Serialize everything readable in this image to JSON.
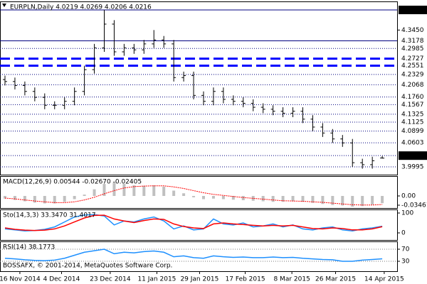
{
  "chart_data": [
    {
      "type": "ohlc",
      "title": "EURPLN,Daily  4.0219 4.0269 4.0206 4.0216",
      "color": "#000000",
      "ylim": [
        3.9798,
        4.4173
      ],
      "yticks": [
        {
          "value": 4.345,
          "label": "4.3450"
        }
      ],
      "levels": [
        {
          "value": 4.3958,
          "style": "solid",
          "highlight": true
        },
        {
          "value": 4.3178,
          "style": "solid"
        },
        {
          "value": 4.2985,
          "style": "dotted"
        },
        {
          "value": 4.2727,
          "style": "dashed"
        },
        {
          "value": 4.2551,
          "style": "dashed"
        },
        {
          "value": 4.2329,
          "style": "dotted"
        },
        {
          "value": 4.2068,
          "style": "dotted"
        },
        {
          "value": 4.176,
          "label": "4.1760",
          "style": "dotted"
        },
        {
          "value": 4.1567,
          "style": "dotted"
        },
        {
          "value": 4.1325,
          "style": "dotted"
        },
        {
          "value": 4.1125,
          "style": "dotted"
        },
        {
          "value": 4.0899,
          "style": "dotted"
        },
        {
          "value": 4.0603,
          "style": "dotted"
        },
        {
          "value": 4.0279,
          "style": "dotted",
          "highlight": true
        },
        {
          "value": 3.9995,
          "style": "dotted"
        }
      ],
      "xticks": [
        {
          "value": 1.5,
          "label": "16 Nov 2014"
        },
        {
          "value": 5.7,
          "label": "4 Dec 2014"
        },
        {
          "value": 10.6,
          "label": "23 Dec 2014"
        },
        {
          "value": 15.3,
          "label": "11 Jan 2015"
        },
        {
          "value": 19.6,
          "label": "29 Jan 2015"
        },
        {
          "value": 24.2,
          "label": "17 Feb 2015"
        },
        {
          "value": 28.9,
          "label": "8 Mar 2015"
        },
        {
          "value": 33.3,
          "label": "26 Mar 2015"
        },
        {
          "value": 38.2,
          "label": "14 Apr 2015"
        }
      ],
      "open": [
        4.22,
        4.215,
        4.205,
        4.19,
        4.175,
        4.155,
        4.155,
        4.165,
        4.19,
        4.245,
        4.3,
        4.36,
        4.29,
        4.3,
        4.295,
        4.31,
        4.32,
        4.31,
        4.225,
        4.23,
        4.18,
        4.165,
        4.19,
        4.17,
        4.165,
        4.16,
        4.15,
        4.145,
        4.14,
        4.135,
        4.14,
        4.12,
        4.1,
        4.085,
        4.07,
        4.06,
        4.01,
        4.005,
        4.0219
      ],
      "high": [
        4.23,
        4.225,
        4.215,
        4.2,
        4.185,
        4.165,
        4.175,
        4.2,
        4.255,
        4.31,
        4.3958,
        4.37,
        4.31,
        4.31,
        4.32,
        4.345,
        4.33,
        4.32,
        4.24,
        4.24,
        4.19,
        4.2,
        4.2,
        4.18,
        4.175,
        4.17,
        4.16,
        4.155,
        4.15,
        4.15,
        4.15,
        4.13,
        4.11,
        4.095,
        4.08,
        4.07,
        4.02,
        4.025,
        4.0269
      ],
      "low": [
        4.205,
        4.195,
        4.18,
        4.165,
        4.145,
        4.145,
        4.145,
        4.155,
        4.18,
        4.235,
        4.29,
        4.28,
        4.28,
        4.285,
        4.285,
        4.3,
        4.3,
        4.215,
        4.215,
        4.17,
        4.155,
        4.155,
        4.16,
        4.155,
        4.15,
        4.14,
        4.135,
        4.13,
        4.125,
        4.125,
        4.11,
        4.09,
        4.075,
        4.06,
        4.05,
        3.9995,
        3.995,
        3.995,
        4.0206
      ],
      "close": [
        4.215,
        4.205,
        4.19,
        4.175,
        4.155,
        4.155,
        4.165,
        4.19,
        4.245,
        4.3,
        4.36,
        4.29,
        4.3,
        4.295,
        4.31,
        4.32,
        4.31,
        4.225,
        4.23,
        4.18,
        4.165,
        4.19,
        4.17,
        4.165,
        4.16,
        4.15,
        4.145,
        4.14,
        4.135,
        4.14,
        4.12,
        4.1,
        4.085,
        4.07,
        4.06,
        4.01,
        4.005,
        4.015,
        4.0216
      ]
    },
    {
      "type": "macd",
      "title": "MACD(12,26,9) 0.00544 -0.02670 -0.02405",
      "ylim": [
        -0.0453,
        0.0745
      ],
      "yticks": [
        {
          "value": 0,
          "label": "0.00"
        },
        -0.03461
      ],
      "histogram": {
        "color": "#c0c0c0",
        "values": [
          -0.01,
          -0.015,
          -0.02,
          -0.025,
          -0.028,
          -0.028,
          -0.022,
          -0.012,
          0.005,
          0.025,
          0.045,
          0.05,
          0.045,
          0.04,
          0.038,
          0.04,
          0.035,
          0.02,
          0.01,
          -0.005,
          -0.012,
          -0.01,
          -0.012,
          -0.014,
          -0.016,
          -0.018,
          -0.02,
          -0.022,
          -0.022,
          -0.02,
          -0.022,
          -0.026,
          -0.03,
          -0.034,
          -0.036,
          -0.04,
          -0.038,
          -0.032,
          -0.027
        ]
      },
      "signal": {
        "color": "#ff0000",
        "values": [
          -0.008,
          -0.011,
          -0.015,
          -0.019,
          -0.022,
          -0.025,
          -0.025,
          -0.022,
          -0.015,
          -0.005,
          0.008,
          0.02,
          0.03,
          0.035,
          0.037,
          0.038,
          0.038,
          0.034,
          0.028,
          0.02,
          0.012,
          0.006,
          0.002,
          -0.002,
          -0.006,
          -0.009,
          -0.012,
          -0.015,
          -0.018,
          -0.019,
          -0.02,
          -0.022,
          -0.024,
          -0.027,
          -0.03,
          -0.033,
          -0.034,
          -0.034,
          -0.032
        ]
      }
    },
    {
      "type": "oscillator",
      "title": "Sto(14,3,3) 33.3470 31.4017",
      "ylim": [
        -35.7,
        117.9
      ],
      "yticks": [
        100,
        0
      ],
      "grid": false,
      "series": [
        {
          "color": "#1e90ff",
          "values": [
            20,
            15,
            10,
            12,
            18,
            30,
            55,
            80,
            90,
            92,
            85,
            40,
            60,
            55,
            70,
            80,
            60,
            20,
            35,
            15,
            20,
            70,
            45,
            40,
            50,
            30,
            35,
            45,
            30,
            40,
            20,
            15,
            25,
            30,
            15,
            10,
            20,
            25,
            33.347
          ]
        },
        {
          "color": "#ff0000",
          "values": [
            25,
            18,
            14,
            12,
            14,
            20,
            35,
            55,
            75,
            88,
            89,
            70,
            60,
            52,
            62,
            70,
            68,
            45,
            32,
            25,
            22,
            45,
            50,
            45,
            42,
            38,
            35,
            38,
            35,
            38,
            30,
            22,
            20,
            25,
            22,
            15,
            15,
            20,
            31.4017
          ]
        }
      ]
    },
    {
      "type": "oscillator",
      "title": "RSI(14) 38.1773",
      "annotation": "BOSSAFX, © 2001-2014, MetaQuotes Software Corp.",
      "ylim": [
        -2.9,
        95.9
      ],
      "yticks": [
        70,
        30
      ],
      "grid": true,
      "series": [
        {
          "color": "#1e90ff",
          "values": [
            40,
            38,
            35,
            33,
            32,
            34,
            40,
            50,
            60,
            65,
            70,
            55,
            60,
            58,
            62,
            64,
            60,
            45,
            48,
            42,
            40,
            48,
            45,
            43,
            44,
            42,
            42,
            44,
            42,
            43,
            40,
            38,
            36,
            35,
            30,
            30,
            34,
            36,
            38.1773
          ]
        }
      ]
    }
  ]
}
